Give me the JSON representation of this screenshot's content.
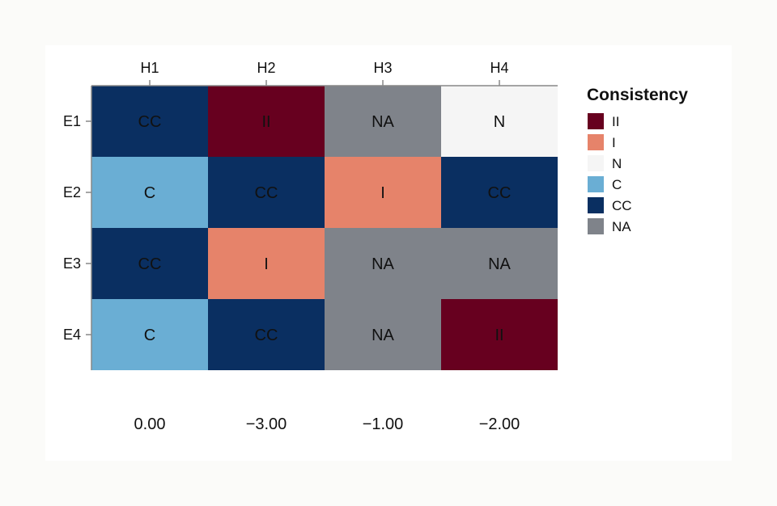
{
  "chart_data": {
    "type": "heatmap",
    "columns": [
      "H1",
      "H2",
      "H3",
      "H4"
    ],
    "rows": [
      "E1",
      "E2",
      "E3",
      "E4"
    ],
    "cells": [
      [
        "CC",
        "II",
        "NA",
        "N"
      ],
      [
        "C",
        "CC",
        "I",
        "CC"
      ],
      [
        "CC",
        "I",
        "NA",
        "NA"
      ],
      [
        "C",
        "CC",
        "NA",
        "II"
      ]
    ],
    "column_totals": [
      "0.00",
      "−3.00",
      "−1.00",
      "−2.00"
    ],
    "legend": {
      "title": "Consistency",
      "placement": "right",
      "items": [
        {
          "key": "II",
          "label": "II",
          "color": "#67001f"
        },
        {
          "key": "I",
          "label": "I",
          "color": "#e6836a"
        },
        {
          "key": "N",
          "label": "N",
          "color": "#f5f5f5"
        },
        {
          "key": "C",
          "label": "C",
          "color": "#6aaed4"
        },
        {
          "key": "CC",
          "label": "CC",
          "color": "#0a2f61"
        },
        {
          "key": "NA",
          "label": "NA",
          "color": "#7f838a"
        }
      ]
    },
    "axis_color": "#888888"
  }
}
